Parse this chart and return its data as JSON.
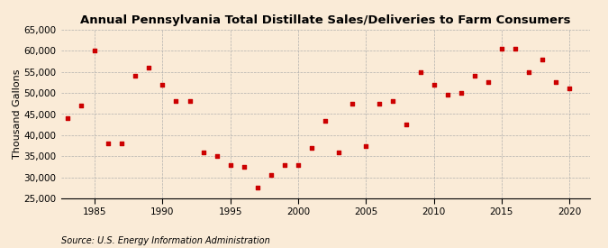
{
  "title": "Annual Pennsylvania Total Distillate Sales/Deliveries to Farm Consumers",
  "ylabel": "Thousand Gallons",
  "source": "Source: U.S. Energy Information Administration",
  "background_color": "#faebd7",
  "marker_color": "#cc0000",
  "years": [
    1983,
    1984,
    1985,
    1986,
    1987,
    1988,
    1989,
    1990,
    1991,
    1992,
    1993,
    1994,
    1995,
    1996,
    1997,
    1998,
    1999,
    2000,
    2001,
    2002,
    2003,
    2004,
    2005,
    2006,
    2007,
    2008,
    2009,
    2010,
    2011,
    2012,
    2013,
    2014,
    2015,
    2016,
    2017,
    2018,
    2019,
    2020
  ],
  "values": [
    44000,
    47000,
    60000,
    38000,
    38000,
    54000,
    56000,
    52000,
    48000,
    48000,
    36000,
    35000,
    33000,
    32500,
    27500,
    30500,
    33000,
    33000,
    37000,
    43500,
    36000,
    47500,
    37500,
    47500,
    48000,
    42500,
    55000,
    52000,
    49500,
    50000,
    54000,
    52500,
    60500,
    60500,
    55000,
    58000,
    52500,
    51000
  ],
  "ylim": [
    25000,
    65000
  ],
  "yticks": [
    25000,
    30000,
    35000,
    40000,
    45000,
    50000,
    55000,
    60000,
    65000
  ],
  "xlim": [
    1982.5,
    2021.5
  ],
  "xticks": [
    1985,
    1990,
    1995,
    2000,
    2005,
    2010,
    2015,
    2020
  ],
  "title_fontsize": 9.5,
  "label_fontsize": 8,
  "tick_fontsize": 7.5,
  "source_fontsize": 7
}
